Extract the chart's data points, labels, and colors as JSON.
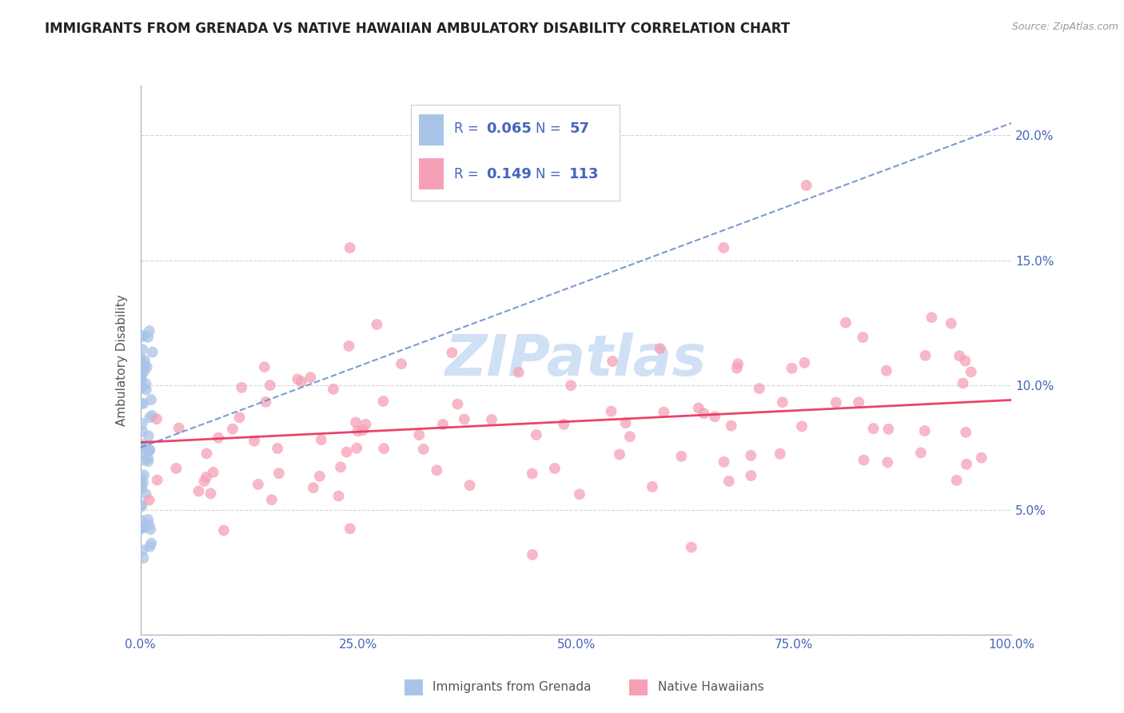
{
  "title": "IMMIGRANTS FROM GRENADA VS NATIVE HAWAIIAN AMBULATORY DISABILITY CORRELATION CHART",
  "source_text": "Source: ZipAtlas.com",
  "ylabel": "Ambulatory Disability",
  "legend1_label": "Immigrants from Grenada",
  "legend2_label": "Native Hawaiians",
  "r1": 0.065,
  "n1": 57,
  "r2": 0.149,
  "n2": 113,
  "color1": "#a8c4e8",
  "color2": "#f5a0b5",
  "trendline1_color": "#6688cc",
  "trendline2_color": "#e8305a",
  "background_color": "#ffffff",
  "title_color": "#222222",
  "axis_label_color": "#555555",
  "tick_color": "#4466bb",
  "grid_color": "#cccccc",
  "watermark_color": "#d0e0f5",
  "xlim": [
    0.0,
    1.0
  ],
  "ylim": [
    0.0,
    0.22
  ],
  "yticks": [
    0.0,
    0.05,
    0.1,
    0.15,
    0.2
  ],
  "ytick_labels": [
    "",
    "5.0%",
    "10.0%",
    "15.0%",
    "20.0%"
  ],
  "xticks": [
    0.0,
    0.25,
    0.5,
    0.75,
    1.0
  ],
  "xtick_labels": [
    "0.0%",
    "25.0%",
    "50.0%",
    "75.0%",
    "100.0%"
  ],
  "trendline1_x0": 0.0,
  "trendline1_y0": 0.075,
  "trendline1_x1": 1.0,
  "trendline1_y1": 0.205,
  "trendline2_x0": 0.0,
  "trendline2_y0": 0.077,
  "trendline2_x1": 1.0,
  "trendline2_y1": 0.094
}
